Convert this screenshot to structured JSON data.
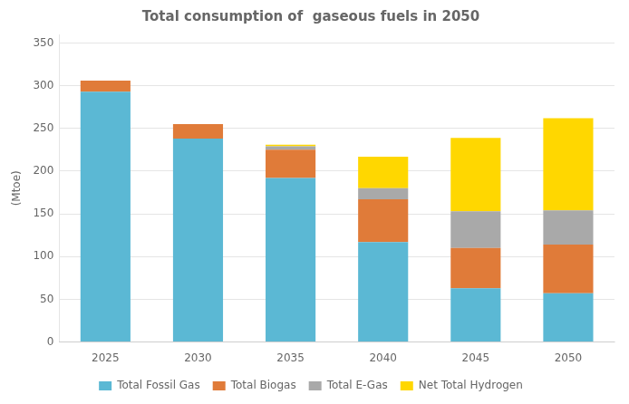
{
  "chart_data": {
    "type": "bar",
    "title": "Total consumption of  gaseous fuels in 2050",
    "ylabel": "(Mtoe)",
    "categories": [
      "2025",
      "2030",
      "2035",
      "2040",
      "2045",
      "2050"
    ],
    "series": [
      {
        "name": "Total Fossil Gas",
        "color": "#5BB8D4",
        "values": [
          293,
          238,
          192,
          117,
          63,
          57
        ]
      },
      {
        "name": "Total Biogas",
        "color": "#E07B39",
        "values": [
          13,
          17,
          33,
          50,
          47,
          57
        ]
      },
      {
        "name": "Total E-Gas",
        "color": "#A9A9A9",
        "values": [
          0,
          0,
          4,
          13,
          43,
          40
        ]
      },
      {
        "name": "Net Total Hydrogen",
        "color": "#FFD700",
        "values": [
          0,
          0,
          2,
          37,
          86,
          108
        ]
      }
    ],
    "stacked": true,
    "ylim": [
      0,
      360
    ],
    "yticks": [
      0,
      50,
      100,
      150,
      200,
      250,
      300,
      350
    ],
    "grid": true,
    "legend": "bottom"
  }
}
